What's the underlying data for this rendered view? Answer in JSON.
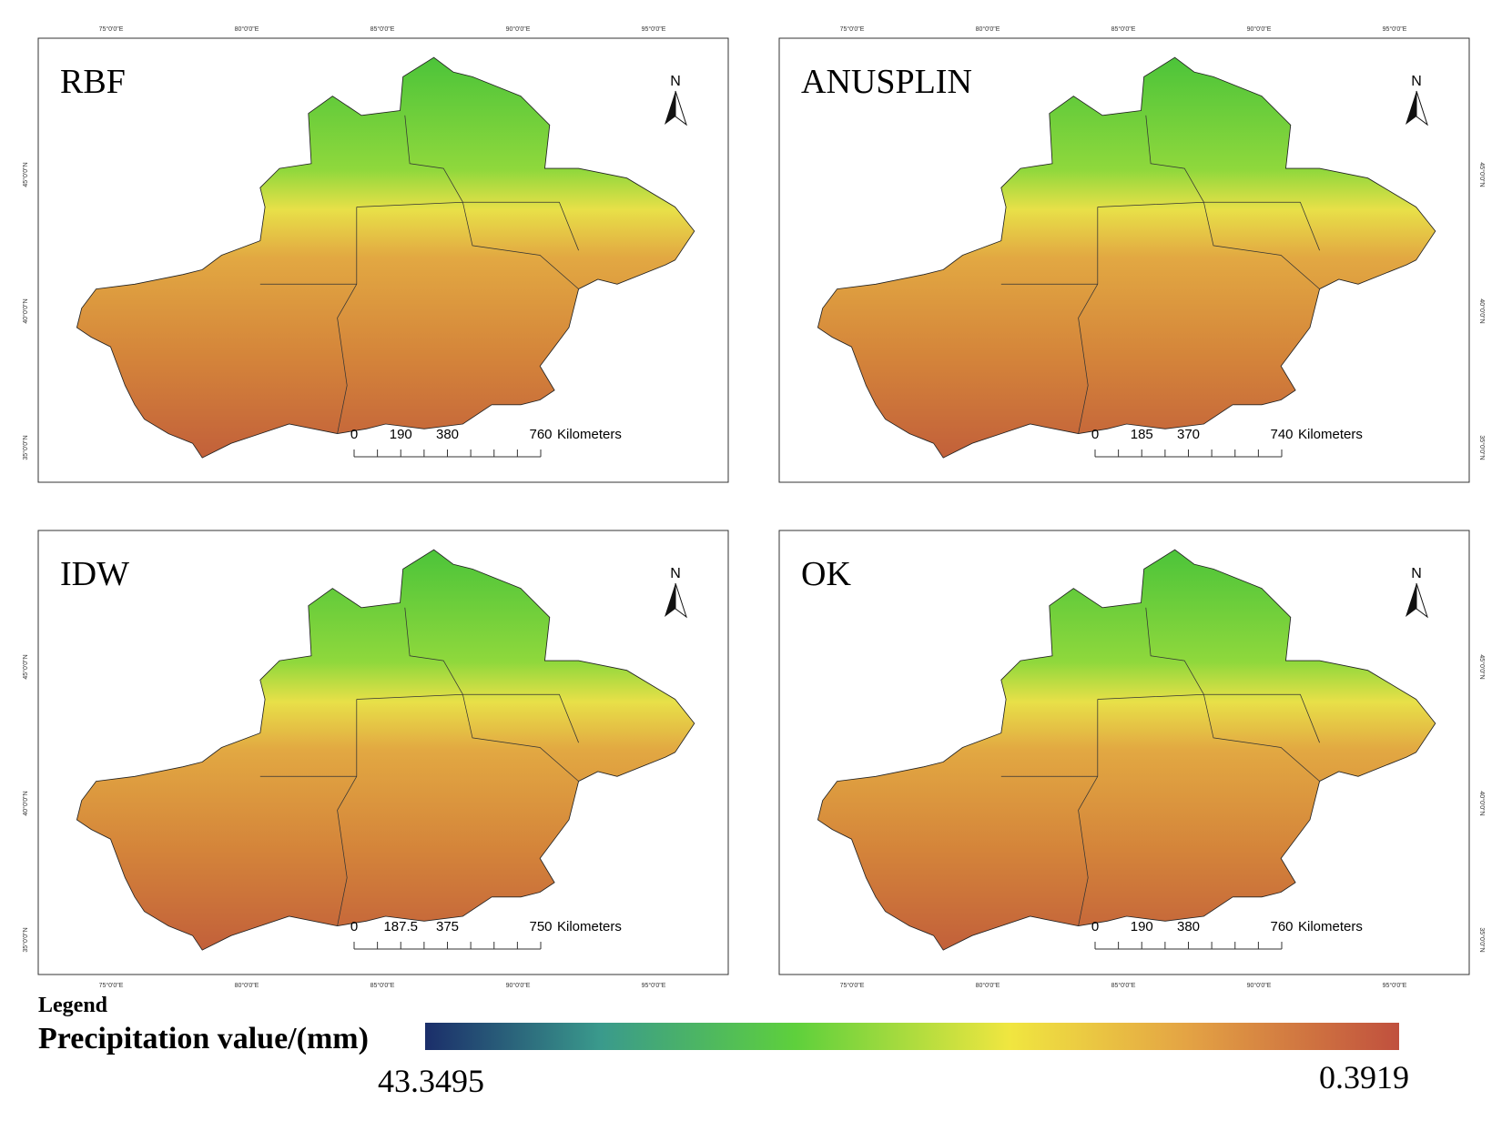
{
  "panels": [
    {
      "title": "RBF",
      "scale_labels": [
        "0",
        "190",
        "380",
        "760"
      ],
      "unit": "Kilometers",
      "north": "N"
    },
    {
      "title": "ANUSPLIN",
      "scale_labels": [
        "0",
        "185",
        "370",
        "740"
      ],
      "unit": "Kilometers",
      "north": "N"
    },
    {
      "title": "IDW",
      "scale_labels": [
        "0",
        "187.5",
        "375",
        "750"
      ],
      "unit": "Kilometers",
      "north": "N"
    },
    {
      "title": "OK",
      "scale_labels": [
        "0",
        "190",
        "380",
        "760"
      ],
      "unit": "Kilometers",
      "north": "N"
    }
  ],
  "graticule": {
    "lon": [
      "75°0'0\"E",
      "80°0'0\"E",
      "85°0'0\"E",
      "90°0'0\"E",
      "95°0'0\"E"
    ],
    "lat": [
      "45°0'0\"N",
      "40°0'0\"N",
      "35°0'0\"N"
    ]
  },
  "legend": {
    "heading": "Legend",
    "title": "Precipitation value/(mm)",
    "high": "43.3495",
    "low": "0.3919"
  }
}
